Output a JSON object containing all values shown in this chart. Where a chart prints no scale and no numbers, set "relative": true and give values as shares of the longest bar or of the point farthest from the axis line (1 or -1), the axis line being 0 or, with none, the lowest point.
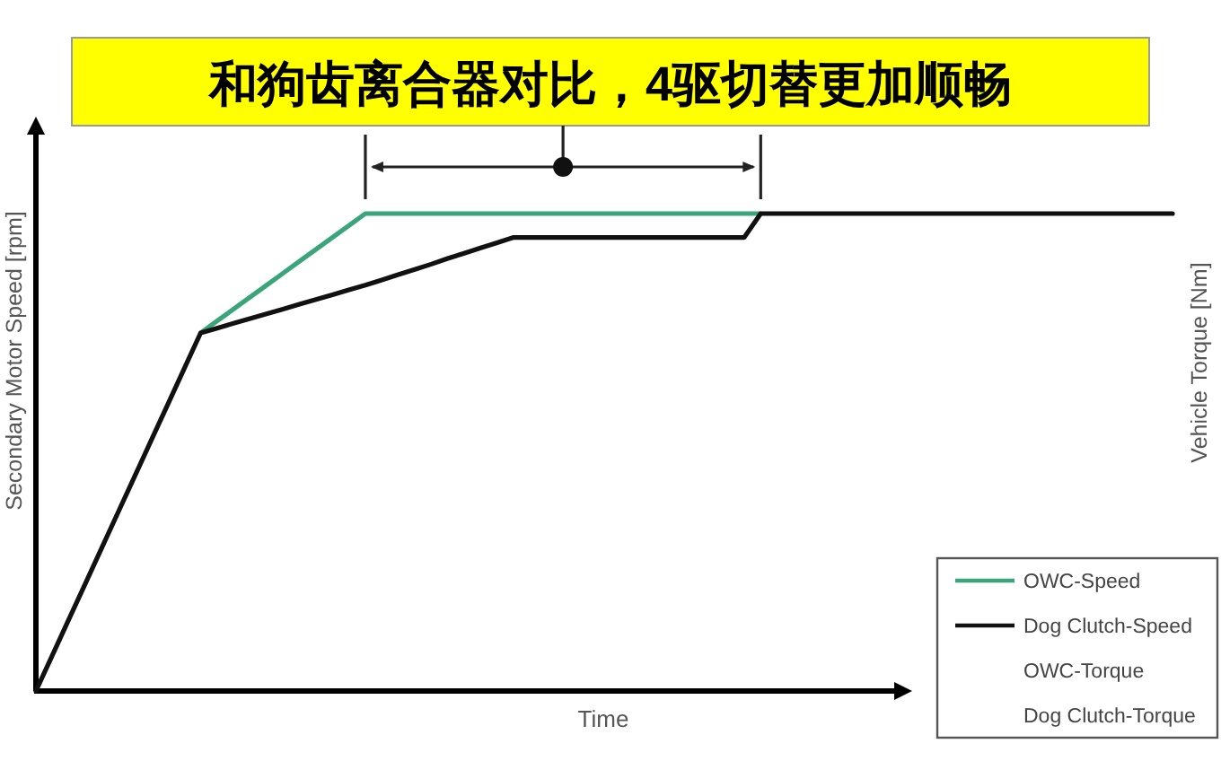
{
  "chart_data": {
    "type": "line",
    "title": "和狗齿离合器对比，4驱切替更加顺畅",
    "xlabel": "Time",
    "ylabel": "Secondary Motor Speed [rpm]",
    "y2label": "Vehicle Torque [Nm]",
    "relative": true,
    "legend": "bottom right",
    "categories": [
      null,
      null,
      null,
      null,
      null,
      null,
      null,
      null,
      null,
      null,
      null,
      null,
      null,
      null,
      null,
      null,
      null,
      null,
      null,
      null,
      null,
      null,
      null,
      null,
      null,
      null,
      null,
      null,
      null,
      null,
      null,
      null,
      null,
      null,
      null,
      null,
      null,
      null,
      null,
      null,
      null,
      null,
      null,
      null,
      null,
      null,
      null,
      null,
      null,
      null,
      null,
      null,
      null,
      null,
      null,
      null,
      null,
      null,
      null,
      null,
      null,
      null,
      null,
      null,
      null,
      null,
      null,
      null,
      null,
      null
    ],
    "series": [
      {
        "name": "OWC-Speed",
        "color": "#3aa57a",
        "values": [
          null,
          null,
          null,
          null,
          null,
          null,
          null,
          null,
          null,
          null,
          0.75,
          0.775,
          0.8,
          0.825,
          0.85,
          0.875,
          0.9,
          0.925,
          0.95,
          0.975,
          1,
          1,
          1,
          1,
          1,
          1,
          1,
          1,
          1,
          1,
          1,
          1,
          1,
          1,
          1,
          1,
          1,
          1,
          1,
          1,
          1,
          1,
          1,
          1,
          1,
          null,
          null,
          null,
          null,
          null,
          null,
          null,
          null,
          null,
          null,
          null,
          null,
          null,
          null,
          null,
          null,
          null,
          null,
          null,
          null,
          null,
          null,
          null,
          null,
          null
        ]
      },
      {
        "name": "Dog Clutch-Speed",
        "color": "#111111",
        "values": [
          0,
          0.075,
          0.15,
          0.225,
          0.3,
          0.375,
          0.45,
          0.525,
          0.6,
          0.675,
          0.75,
          0.76,
          0.77,
          0.78,
          0.79,
          0.8,
          0.81,
          0.82,
          0.83,
          0.84,
          0.85,
          0.861,
          0.872,
          0.883,
          0.894,
          0.906,
          0.917,
          0.928,
          0.939,
          0.95,
          0.95,
          0.95,
          0.95,
          0.95,
          0.95,
          0.95,
          0.95,
          0.95,
          0.95,
          0.95,
          0.95,
          0.95,
          0.95,
          0.95,
          1,
          1,
          1,
          1,
          1,
          1,
          1,
          1,
          1,
          1,
          1,
          1,
          1,
          1,
          1,
          1,
          1,
          1,
          1,
          1,
          1,
          1,
          1,
          1,
          1,
          1
        ]
      },
      {
        "name": "OWC-Torque",
        "values": [
          null,
          null,
          null,
          null,
          null,
          null,
          null,
          null,
          null,
          null,
          null,
          null,
          null,
          null,
          null,
          null,
          null,
          null,
          null,
          null,
          null,
          null,
          null,
          null,
          null,
          null,
          null,
          null,
          null,
          null,
          null,
          null,
          null,
          null,
          null,
          null,
          null,
          null,
          null,
          null,
          null,
          null,
          null,
          null,
          null,
          null,
          null,
          null,
          null,
          null,
          null,
          null,
          null,
          null,
          null,
          null,
          null,
          null,
          null,
          null,
          null,
          null,
          null,
          null,
          null,
          null,
          null,
          null,
          null,
          null
        ]
      },
      {
        "name": "Dog Clutch-Torque",
        "values": [
          null,
          null,
          null,
          null,
          null,
          null,
          null,
          null,
          null,
          null,
          null,
          null,
          null,
          null,
          null,
          null,
          null,
          null,
          null,
          null,
          null,
          null,
          null,
          null,
          null,
          null,
          null,
          null,
          null,
          null,
          null,
          null,
          null,
          null,
          null,
          null,
          null,
          null,
          null,
          null,
          null,
          null,
          null,
          null,
          null,
          null,
          null,
          null,
          null,
          null,
          null,
          null,
          null,
          null,
          null,
          null,
          null,
          null,
          null,
          null,
          null,
          null,
          null,
          null,
          null,
          null,
          null,
          null,
          null,
          null
        ]
      }
    ]
  }
}
